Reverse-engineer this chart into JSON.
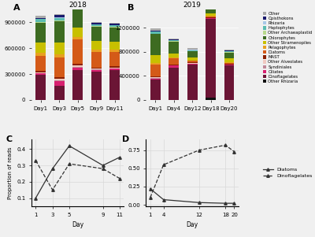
{
  "title_A": "2018",
  "title_B": "2019",
  "cat_order": [
    "Other Rhizaria",
    "Dinoflagelates",
    "Ciliates",
    "Syndiniales",
    "Other Alveolates",
    "MAST",
    "Diatoms",
    "Pelagophytes",
    "Other Stramenopiles",
    "Chlorophytes",
    "Other Archaeaplastid",
    "Haptophytes",
    "Rhizaria",
    "Opisthokons",
    "Other"
  ],
  "colors": {
    "Other": "#aaaaaa",
    "Opisthokons": "#1a1a6e",
    "Rhizaria": "#a8c8e8",
    "Haptophytes": "#5bbcb0",
    "Other Archaeaplastid": "#b8d98d",
    "Chlorophytes": "#3d6b21",
    "Other Stramenopiles": "#c8c000",
    "Pelagophytes": "#e8a020",
    "Diatoms": "#d45a18",
    "MAST": "#8b2000",
    "Other Alveolates": "#f0c8c0",
    "Syndiniales": "#c08898",
    "Ciliates": "#d82070",
    "Dinoflagelates": "#6b1535",
    "Other Rhizaria": "#101010"
  },
  "days_A": [
    "Day1",
    "Day3",
    "Day5",
    "Day9",
    "Day11"
  ],
  "days_B": [
    "Day1",
    "Day4",
    "Day12",
    "Day18",
    "Day20"
  ],
  "data_A": {
    "Other Rhizaria": [
      0,
      0,
      0,
      0,
      0
    ],
    "Dinoflagelates": [
      290000,
      165000,
      350000,
      330000,
      345000
    ],
    "Ciliates": [
      18000,
      55000,
      28000,
      18000,
      18000
    ],
    "Syndiniales": [
      5000,
      8000,
      5000,
      5000,
      5000
    ],
    "Other Alveolates": [
      5000,
      18000,
      18000,
      10000,
      10000
    ],
    "MAST": [
      18000,
      20000,
      15000,
      15000,
      14000
    ],
    "Diatoms": [
      175000,
      230000,
      285000,
      175000,
      165000
    ],
    "Pelagophytes": [
      38000,
      33000,
      28000,
      33000,
      28000
    ],
    "Other Stramenopiles": [
      118000,
      138000,
      108000,
      98000,
      88000
    ],
    "Chlorophytes": [
      225000,
      248000,
      315000,
      165000,
      165000
    ],
    "Other Archaeaplastid": [
      10000,
      10000,
      10000,
      8000,
      8000
    ],
    "Haptophytes": [
      38000,
      28000,
      23000,
      18000,
      18000
    ],
    "Rhizaria": [
      5000,
      8000,
      5000,
      5000,
      5000
    ],
    "Opisthokons": [
      5000,
      22000,
      18000,
      13000,
      13000
    ],
    "Other": [
      28000,
      13000,
      18000,
      8000,
      13000
    ]
  },
  "data_B": {
    "Other Rhizaria": [
      0,
      0,
      0,
      35000,
      0
    ],
    "Dinoflagelates": [
      340000,
      540000,
      590000,
      1310000,
      575000
    ],
    "Ciliates": [
      18000,
      28000,
      10000,
      8000,
      8000
    ],
    "Syndiniales": [
      5000,
      5000,
      5000,
      5000,
      5000
    ],
    "Other Alveolates": [
      10000,
      5000,
      5000,
      5000,
      5000
    ],
    "MAST": [
      18000,
      10000,
      10000,
      8000,
      8000
    ],
    "Diatoms": [
      200000,
      100000,
      28000,
      10000,
      13000
    ],
    "Pelagophytes": [
      28000,
      13000,
      10000,
      10000,
      13000
    ],
    "Other Stramenopiles": [
      128000,
      68000,
      48000,
      38000,
      58000
    ],
    "Chlorophytes": [
      345000,
      198000,
      98000,
      78000,
      98000
    ],
    "Other Archaeaplastid": [
      10000,
      8000,
      8000,
      8000,
      8000
    ],
    "Haptophytes": [
      28000,
      13000,
      13000,
      10000,
      13000
    ],
    "Rhizaria": [
      5000,
      5000,
      5000,
      5000,
      5000
    ],
    "Opisthokons": [
      18000,
      10000,
      10000,
      8000,
      13000
    ],
    "Other": [
      28000,
      13000,
      18000,
      13000,
      13000
    ]
  },
  "ylim_A": [
    0,
    1050000
  ],
  "ylim_B": [
    0,
    1500000
  ],
  "yticks_A": [
    0,
    300000,
    600000,
    900000
  ],
  "yticks_B": [
    0,
    400000,
    800000,
    1200000
  ],
  "line_days_C": [
    1,
    3,
    5,
    9,
    11
  ],
  "diatoms_C": [
    0.1,
    0.28,
    0.42,
    0.3,
    0.35
  ],
  "dinoflag_C": [
    0.33,
    0.15,
    0.31,
    0.28,
    0.22
  ],
  "yticks_C": [
    0.1,
    0.2,
    0.3,
    0.4
  ],
  "line_days_D": [
    1,
    4,
    12,
    18,
    20
  ],
  "diatoms_D": [
    0.22,
    0.07,
    0.03,
    0.02,
    0.02
  ],
  "dinoflag_D": [
    0.1,
    0.55,
    0.75,
    0.82,
    0.73
  ],
  "yticks_D": [
    0.0,
    0.25,
    0.5,
    0.75
  ],
  "bg_color": "#f0f0f0"
}
